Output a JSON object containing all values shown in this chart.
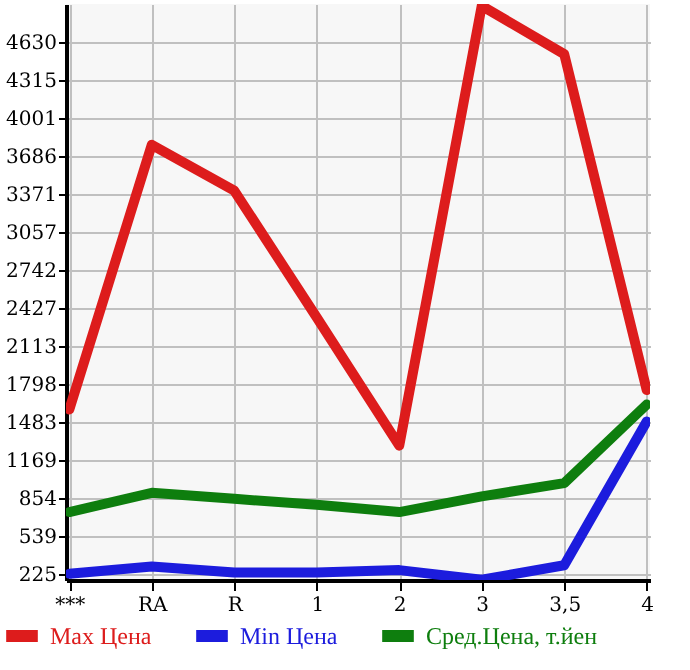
{
  "chart_data": {
    "type": "line",
    "categories": [
      "***",
      "RA",
      "R",
      "1",
      "2",
      "3",
      "3,5",
      "4"
    ],
    "series": [
      {
        "name": "Max Цена",
        "color": "#dd1c1c",
        "values": [
          1590,
          3780,
          3400,
          2350,
          1290,
          4930,
          4530,
          1750
        ]
      },
      {
        "name": "Min Цена",
        "color": "#1c1cdd",
        "values": [
          230,
          290,
          240,
          240,
          260,
          180,
          300,
          1490
        ]
      },
      {
        "name": "Сред.Цена, т.йен",
        "color": "#0e7e0e",
        "values": [
          740,
          900,
          850,
          800,
          740,
          870,
          980,
          1630
        ]
      }
    ],
    "ylim": [
      178,
      4945
    ],
    "yticks": [
      225,
      539,
      854,
      1169,
      1483,
      1798,
      2113,
      2427,
      2742,
      3057,
      3371,
      3686,
      4001,
      4315,
      4630
    ],
    "grid": true,
    "legend": "bottom",
    "marker": "none",
    "line_style": "solid"
  }
}
